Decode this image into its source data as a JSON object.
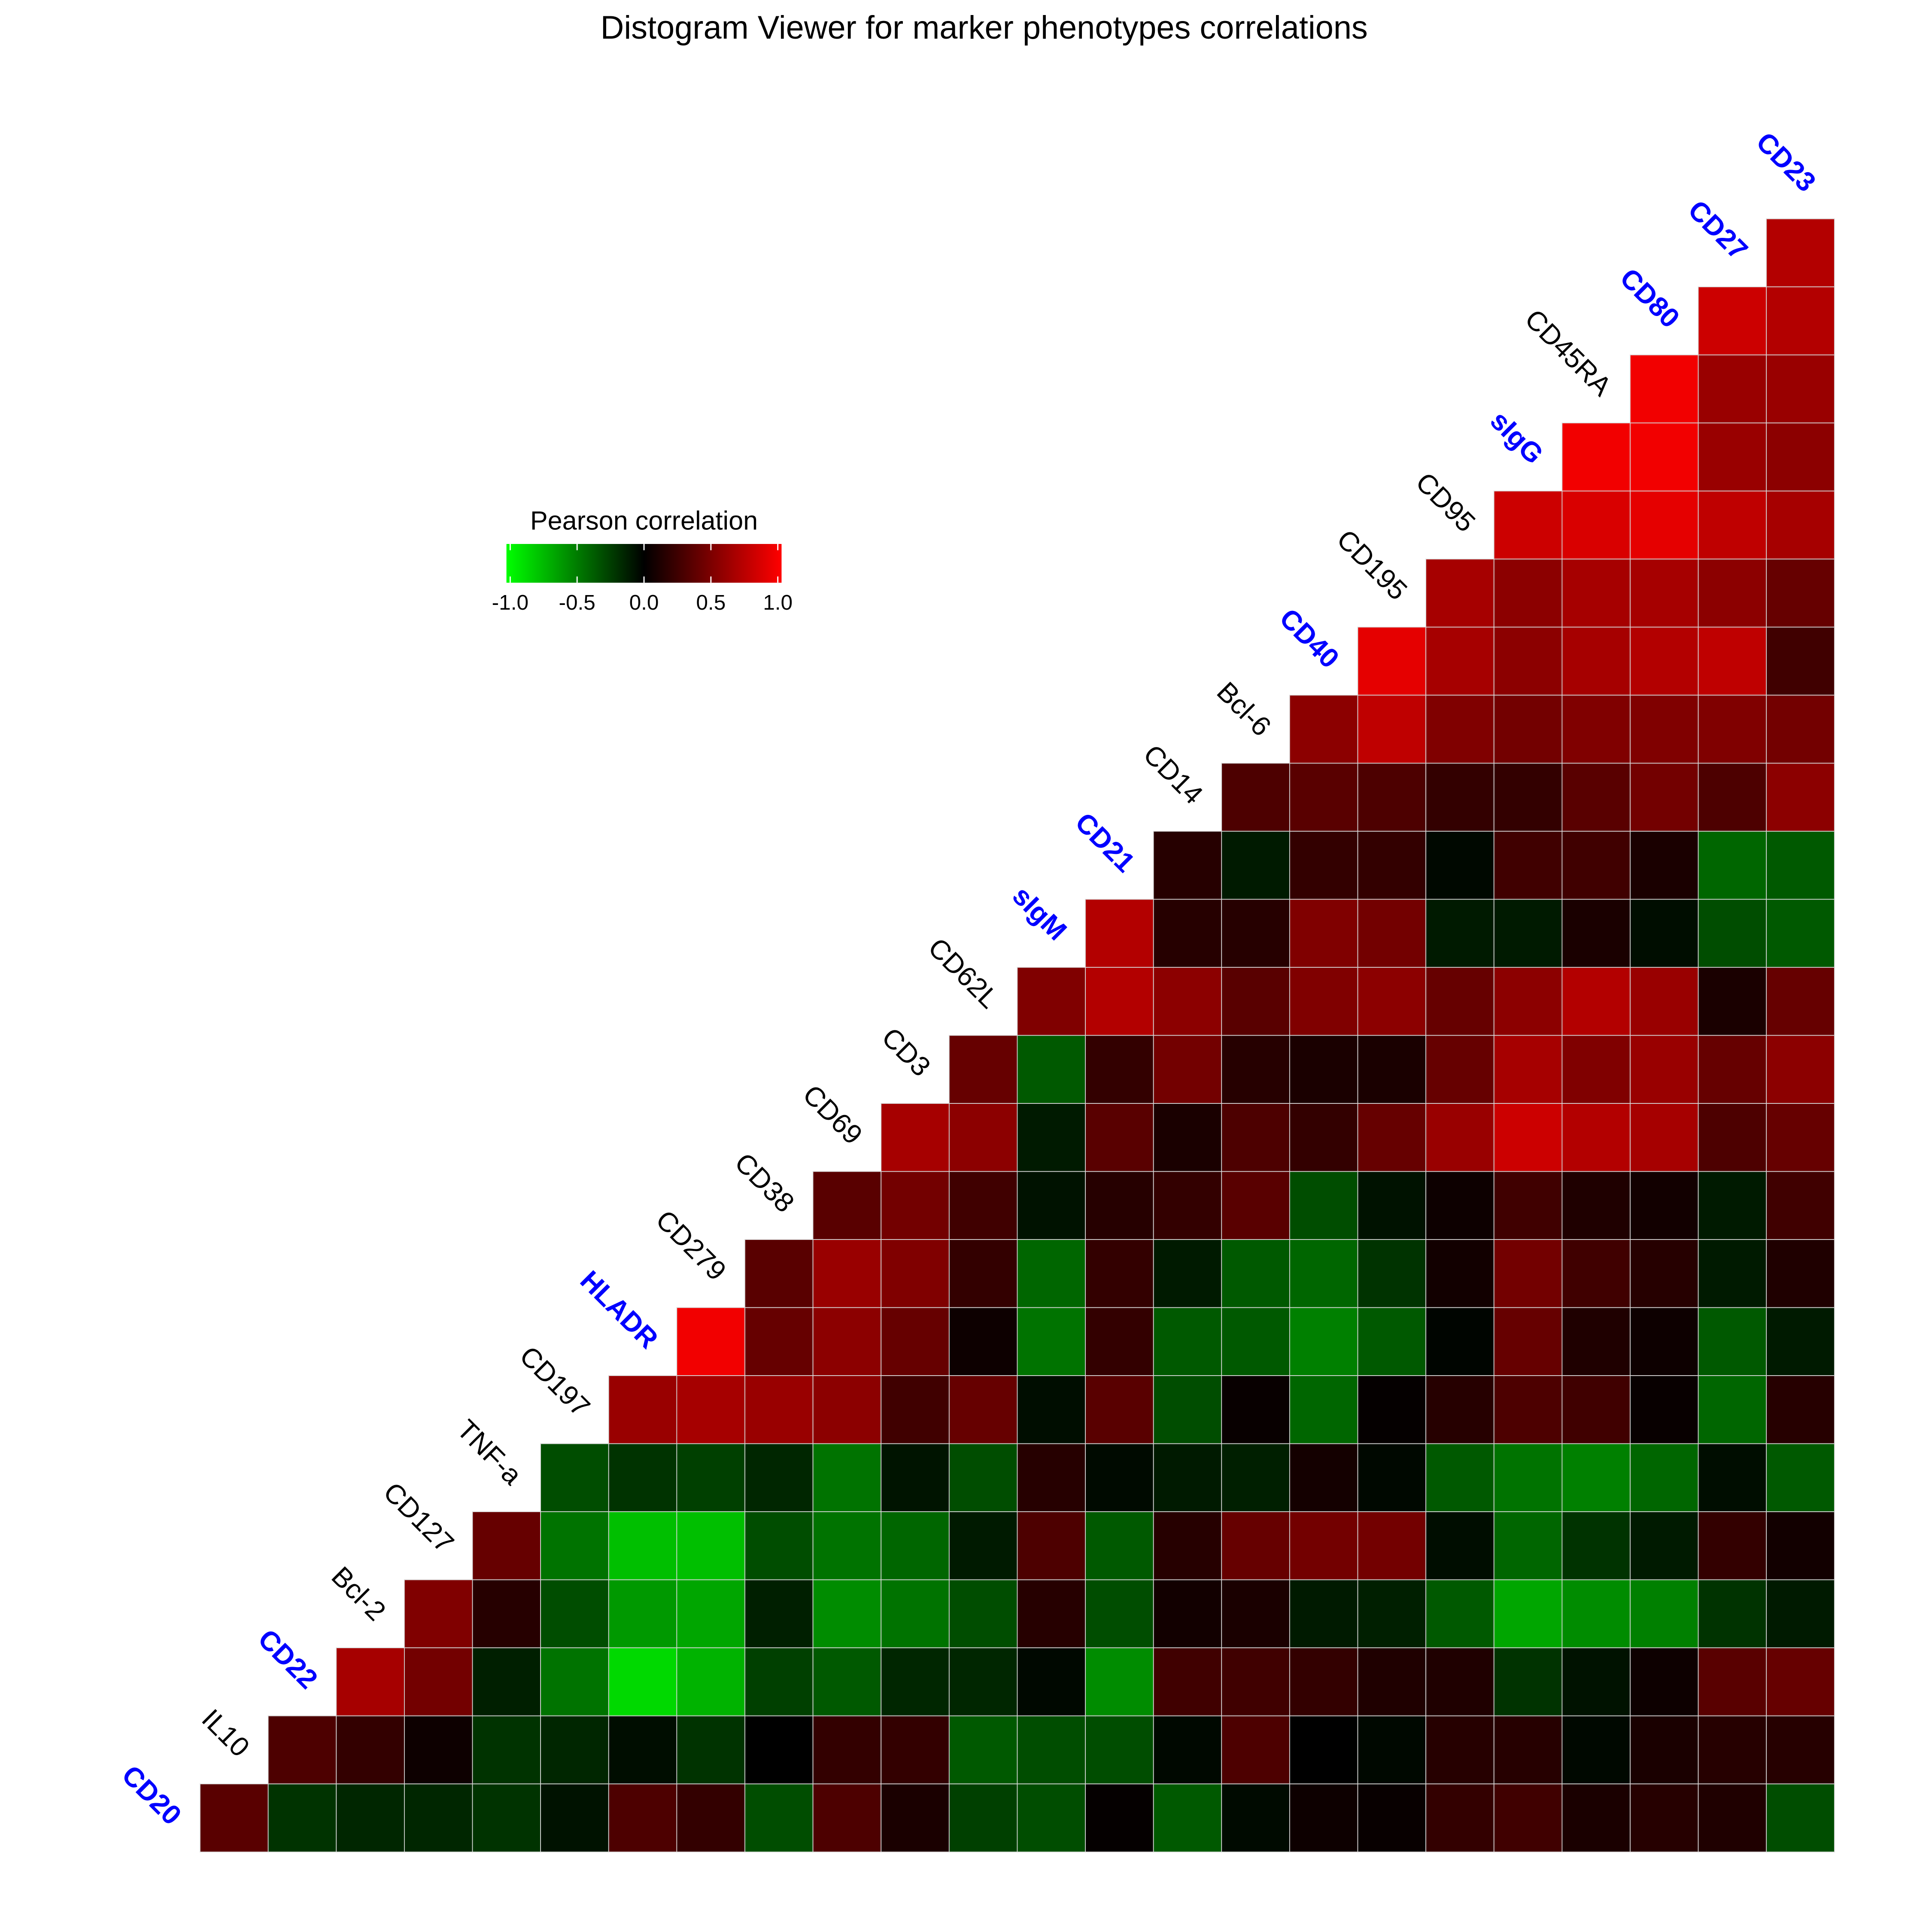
{
  "chart_data": {
    "type": "heatmap",
    "title": "Distogram Viewer for marker phenotypes correlations",
    "legend_title": "Pearson correlation",
    "colors": [
      "#00ff00",
      "#000000",
      "#ff0000"
    ],
    "clim": [
      -1,
      1
    ],
    "cticks": [
      {
        "value": -1,
        "label": "-1.0"
      },
      -0.5,
      {
        "value": 0,
        "label": "0.0"
      },
      0.5,
      {
        "value": 1,
        "label": "1.0"
      }
    ],
    "labels": [
      {
        "text": "CD20",
        "color": "#0000ff"
      },
      {
        "text": "IL10",
        "color": "#000000"
      },
      {
        "text": "CD22",
        "color": "#0000ff"
      },
      {
        "text": "Bcl-2",
        "color": "#000000"
      },
      {
        "text": "CD127",
        "color": "#000000"
      },
      {
        "text": "TNF-a",
        "color": "#000000"
      },
      {
        "text": "CD197",
        "color": "#000000"
      },
      {
        "text": "HLADR",
        "color": "#0000ff"
      },
      {
        "text": "CD279",
        "color": "#000000"
      },
      {
        "text": "CD38",
        "color": "#000000"
      },
      {
        "text": "CD69",
        "color": "#000000"
      },
      {
        "text": "CD3",
        "color": "#000000"
      },
      {
        "text": "CD62L",
        "color": "#000000"
      },
      {
        "text": "sIgM",
        "color": "#0000ff"
      },
      {
        "text": "CD21",
        "color": "#0000ff"
      },
      {
        "text": "CD14",
        "color": "#000000"
      },
      {
        "text": "Bcl-6",
        "color": "#000000"
      },
      {
        "text": "CD40",
        "color": "#0000ff"
      },
      {
        "text": "CD195",
        "color": "#000000"
      },
      {
        "text": "CD95",
        "color": "#000000"
      },
      {
        "text": "sIgG",
        "color": "#0000ff"
      },
      {
        "text": "CD45RA",
        "color": "#000000"
      },
      {
        "text": "CD80",
        "color": "#0000ff"
      },
      {
        "text": "CD27",
        "color": "#0000ff"
      },
      {
        "text": "CD23",
        "color": "#0000ff"
      }
    ],
    "rows": [
      [
        0.7
      ],
      [
        0.8,
        0.7
      ],
      [
        0.95,
        0.6,
        0.6
      ],
      [
        0.95,
        0.95,
        0.6,
        0.55
      ],
      [
        0.8,
        0.85,
        0.9,
        0.75,
        0.65
      ],
      [
        0.65,
        0.55,
        0.65,
        0.65,
        0.55,
        0.4
      ],
      [
        0.9,
        0.65,
        0.55,
        0.65,
        0.7,
        0.75,
        0.25
      ],
      [
        0.55,
        0.75,
        0.5,
        0.45,
        0.5,
        0.5,
        0.5,
        0.45
      ],
      [
        0.3,
        0.35,
        0.3,
        0.2,
        0.2,
        0.35,
        0.45,
        0.3,
        0.55
      ],
      [
        0.15,
        -0.1,
        0.2,
        0.2,
        -0.03,
        0.25,
        0.25,
        0.1,
        -0.4,
        -0.35
      ],
      [
        0.7,
        0.15,
        0.15,
        0.5,
        0.45,
        -0.1,
        -0.1,
        0.1,
        -0.05,
        -0.3,
        -0.35
      ],
      [
        0.5,
        0.7,
        0.55,
        0.35,
        0.5,
        0.55,
        0.4,
        0.55,
        0.7,
        0.6,
        0.1,
        0.4
      ],
      [
        0.4,
        -0.35,
        0.2,
        0.45,
        0.15,
        0.1,
        0.1,
        0.4,
        0.65,
        0.5,
        0.6,
        0.4,
        0.55
      ],
      [
        0.65,
        0.55,
        -0.1,
        0.35,
        0.1,
        0.3,
        0.2,
        0.4,
        0.6,
        0.8,
        0.7,
        0.65,
        0.3,
        0.4
      ],
      [
        0.35,
        0.45,
        0.25,
        -0.07,
        0.15,
        0.2,
        0.35,
        -0.3,
        -0.07,
        0.05,
        0.25,
        0.12,
        0.07,
        -0.1,
        0.25
      ],
      [
        0.35,
        0.6,
        0.5,
        0.2,
        -0.4,
        0.2,
        -0.1,
        -0.35,
        -0.4,
        -0.2,
        0.07,
        0.45,
        0.25,
        0.15,
        -0.1,
        0.12
      ],
      [
        0.95,
        0.4,
        0.55,
        0.4,
        0.05,
        -0.45,
        0.2,
        -0.35,
        -0.35,
        -0.5,
        -0.35,
        -0.02,
        0.4,
        0.12,
        0.05,
        -0.35,
        -0.1
      ],
      [
        0.6,
        0.65,
        0.6,
        0.55,
        0.25,
        0.4,
        -0.05,
        0.35,
        -0.3,
        0.03,
        -0.4,
        0.02,
        0.15,
        0.3,
        0.25,
        0.03,
        -0.4,
        0.15
      ],
      [
        -0.3,
        -0.2,
        -0.25,
        -0.15,
        -0.45,
        -0.08,
        -0.3,
        0.15,
        -0.04,
        -0.1,
        -0.12,
        0.08,
        -0.03,
        -0.35,
        -0.45,
        -0.5,
        -0.4,
        -0.05,
        -0.35
      ],
      [
        0.4,
        -0.45,
        -0.75,
        -0.75,
        -0.3,
        -0.45,
        -0.4,
        -0.1,
        0.3,
        -0.35,
        0.15,
        0.4,
        0.45,
        0.45,
        -0.05,
        -0.4,
        -0.2,
        -0.1,
        0.2,
        0.07
      ],
      [
        0.5,
        0.15,
        -0.3,
        -0.6,
        -0.65,
        -0.12,
        -0.55,
        -0.45,
        -0.3,
        0.15,
        -0.3,
        0.07,
        0.1,
        -0.1,
        -0.12,
        -0.35,
        -0.65,
        -0.55,
        -0.5,
        -0.2,
        -0.1
      ],
      [
        0.65,
        0.45,
        -0.12,
        -0.45,
        -0.85,
        -0.7,
        -0.25,
        -0.35,
        -0.15,
        -0.15,
        -0.03,
        -0.55,
        0.25,
        0.25,
        0.2,
        0.12,
        0.12,
        -0.2,
        -0.07,
        0.05,
        0.35,
        0.4
      ],
      [
        0.3,
        0.2,
        0.05,
        -0.2,
        -0.15,
        -0.05,
        -0.2,
        0.0,
        0.2,
        0.2,
        -0.35,
        -0.3,
        -0.3,
        -0.03,
        0.3,
        0.0,
        -0.03,
        0.15,
        0.15,
        -0.03,
        0.1,
        0.15,
        0.15
      ],
      [
        0.35,
        -0.2,
        -0.15,
        -0.15,
        -0.2,
        -0.07,
        0.3,
        0.2,
        -0.3,
        0.3,
        0.1,
        -0.25,
        -0.3,
        0.02,
        -0.35,
        -0.04,
        0.05,
        0.03,
        0.2,
        0.25,
        0.1,
        0.15,
        0.12,
        -0.3
      ]
    ]
  }
}
